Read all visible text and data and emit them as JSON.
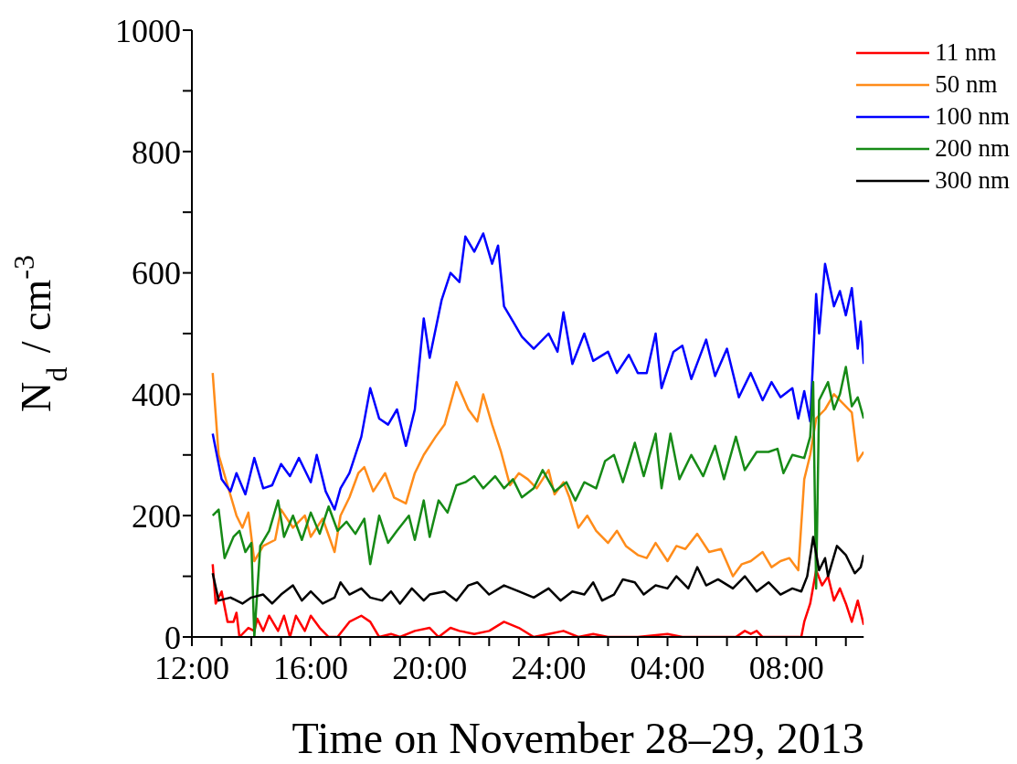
{
  "chart_data": {
    "type": "line",
    "xlabel": "Time on November 28–29, 2013",
    "ylabel": "N$_{d}$ / cm$^{-3}$",
    "xlim": [
      "2013-11-28T12:00",
      "2013-11-29T10:36"
    ],
    "ylim": [
      0,
      1000
    ],
    "xticks": [
      {
        "value": "2013-11-28T12:00",
        "label": "12:00"
      },
      {
        "value": "2013-11-28T13:00",
        "label": null
      },
      {
        "value": "2013-11-28T14:00",
        "label": null
      },
      {
        "value": "2013-11-28T15:00",
        "label": null
      },
      {
        "value": "2013-11-28T16:00",
        "label": "16:00"
      },
      {
        "value": "2013-11-28T17:00",
        "label": null
      },
      {
        "value": "2013-11-28T18:00",
        "label": null
      },
      {
        "value": "2013-11-28T19:00",
        "label": null
      },
      {
        "value": "2013-11-28T20:00",
        "label": "20:00"
      },
      {
        "value": "2013-11-28T21:00",
        "label": null
      },
      {
        "value": "2013-11-28T22:00",
        "label": null
      },
      {
        "value": "2013-11-28T23:00",
        "label": null
      },
      {
        "value": "2013-11-29T00:00",
        "label": "24:00"
      },
      {
        "value": "2013-11-29T01:00",
        "label": null
      },
      {
        "value": "2013-11-29T02:00",
        "label": null
      },
      {
        "value": "2013-11-29T03:00",
        "label": null
      },
      {
        "value": "2013-11-29T04:00",
        "label": "04:00"
      },
      {
        "value": "2013-11-29T05:00",
        "label": null
      },
      {
        "value": "2013-11-29T06:00",
        "label": null
      },
      {
        "value": "2013-11-29T07:00",
        "label": null
      },
      {
        "value": "2013-11-29T08:00",
        "label": "08:00"
      },
      {
        "value": "2013-11-29T09:00",
        "label": null
      },
      {
        "value": "2013-11-29T10:00",
        "label": null
      }
    ],
    "yticks": [
      0,
      {
        "value": 100,
        "label": null
      },
      200,
      {
        "value": 300,
        "label": null
      },
      400,
      {
        "value": 500,
        "label": null
      },
      600,
      {
        "value": 700,
        "label": null
      },
      800,
      {
        "value": 900,
        "label": null
      },
      1000
    ],
    "legend": "top right",
    "marker": "none",
    "line_style": "solid",
    "series": [
      {
        "name": "11 nm",
        "color": "#ff0000",
        "x": [
          "2013-11-28T12:42",
          "2013-11-28T12:48",
          "2013-11-28T13:00",
          "2013-11-28T13:12",
          "2013-11-28T13:24",
          "2013-11-28T13:30",
          "2013-11-28T13:36",
          "2013-11-28T13:54",
          "2013-11-28T14:06",
          "2013-11-28T14:12",
          "2013-11-28T14:24",
          "2013-11-28T14:36",
          "2013-11-28T14:54",
          "2013-11-28T15:06",
          "2013-11-28T15:18",
          "2013-11-28T15:30",
          "2013-11-28T15:48",
          "2013-11-28T16:00",
          "2013-11-28T16:18",
          "2013-11-28T16:36",
          "2013-11-28T16:54",
          "2013-11-28T17:18",
          "2013-11-28T17:42",
          "2013-11-28T18:00",
          "2013-11-28T18:18",
          "2013-11-28T18:42",
          "2013-11-28T19:00",
          "2013-11-28T19:30",
          "2013-11-28T20:00",
          "2013-11-28T20:18",
          "2013-11-28T20:42",
          "2013-11-28T21:00",
          "2013-11-28T21:30",
          "2013-11-28T22:00",
          "2013-11-28T22:30",
          "2013-11-28T23:00",
          "2013-11-28T23:30",
          "2013-11-29T00:00",
          "2013-11-29T00:30",
          "2013-11-29T01:00",
          "2013-11-29T01:30",
          "2013-11-29T02:00",
          "2013-11-29T03:00",
          "2013-11-29T04:00",
          "2013-11-29T04:30",
          "2013-11-29T05:30",
          "2013-11-29T06:18",
          "2013-11-29T06:36",
          "2013-11-29T06:48",
          "2013-11-29T07:00",
          "2013-11-29T07:12",
          "2013-11-29T08:30",
          "2013-11-29T08:36",
          "2013-11-29T08:48",
          "2013-11-29T09:00",
          "2013-11-29T09:12",
          "2013-11-29T09:24",
          "2013-11-29T09:36",
          "2013-11-29T09:48",
          "2013-11-29T10:00",
          "2013-11-29T10:12",
          "2013-11-29T10:24",
          "2013-11-29T10:36"
        ],
        "values": [
          120,
          55,
          75,
          25,
          25,
          40,
          0,
          15,
          10,
          30,
          10,
          35,
          10,
          35,
          0,
          35,
          10,
          35,
          15,
          0,
          0,
          25,
          35,
          25,
          0,
          5,
          0,
          10,
          15,
          0,
          15,
          10,
          5,
          10,
          25,
          15,
          0,
          5,
          10,
          0,
          5,
          0,
          0,
          5,
          0,
          0,
          0,
          10,
          5,
          10,
          0,
          0,
          25,
          55,
          110,
          85,
          100,
          60,
          80,
          55,
          25,
          60,
          20
        ]
      },
      {
        "name": "50 nm",
        "color": "#ff8c1a",
        "x": [
          "2013-11-28T12:42",
          "2013-11-28T12:54",
          "2013-11-28T13:12",
          "2013-11-28T13:30",
          "2013-11-28T13:42",
          "2013-11-28T13:54",
          "2013-11-28T14:06",
          "2013-11-28T14:24",
          "2013-11-28T14:48",
          "2013-11-28T15:00",
          "2013-11-28T15:24",
          "2013-11-28T15:48",
          "2013-11-28T16:00",
          "2013-11-28T16:24",
          "2013-11-28T16:48",
          "2013-11-28T17:00",
          "2013-11-28T17:18",
          "2013-11-28T17:36",
          "2013-11-28T17:48",
          "2013-11-28T18:06",
          "2013-11-28T18:30",
          "2013-11-28T18:48",
          "2013-11-28T19:12",
          "2013-11-28T19:30",
          "2013-11-28T19:48",
          "2013-11-28T20:12",
          "2013-11-28T20:30",
          "2013-11-28T20:54",
          "2013-11-28T21:18",
          "2013-11-28T21:36",
          "2013-11-28T21:48",
          "2013-11-28T22:06",
          "2013-11-28T22:24",
          "2013-11-28T22:42",
          "2013-11-28T23:00",
          "2013-11-28T23:18",
          "2013-11-28T23:36",
          "2013-11-29T00:00",
          "2013-11-29T00:12",
          "2013-11-29T00:30",
          "2013-11-29T00:42",
          "2013-11-29T01:00",
          "2013-11-29T01:18",
          "2013-11-29T01:36",
          "2013-11-29T02:00",
          "2013-11-29T02:18",
          "2013-11-29T02:36",
          "2013-11-29T03:00",
          "2013-11-29T03:18",
          "2013-11-29T03:36",
          "2013-11-29T04:00",
          "2013-11-29T04:18",
          "2013-11-29T04:36",
          "2013-11-29T05:00",
          "2013-11-29T05:24",
          "2013-11-29T05:48",
          "2013-11-29T06:12",
          "2013-11-29T06:30",
          "2013-11-29T06:48",
          "2013-11-29T07:12",
          "2013-11-29T07:30",
          "2013-11-29T07:48",
          "2013-11-29T08:06",
          "2013-11-29T08:24",
          "2013-11-29T08:36",
          "2013-11-29T08:48",
          "2013-11-29T09:00",
          "2013-11-29T09:18",
          "2013-11-29T09:36",
          "2013-11-29T09:54",
          "2013-11-29T10:12",
          "2013-11-29T10:24",
          "2013-11-29T10:36"
        ],
        "values": [
          435,
          300,
          250,
          200,
          180,
          205,
          125,
          150,
          160,
          210,
          180,
          200,
          165,
          195,
          140,
          200,
          230,
          270,
          280,
          240,
          270,
          230,
          220,
          270,
          300,
          330,
          350,
          420,
          375,
          355,
          400,
          350,
          305,
          250,
          270,
          260,
          245,
          275,
          235,
          255,
          230,
          180,
          200,
          175,
          155,
          175,
          150,
          135,
          130,
          155,
          125,
          150,
          145,
          170,
          140,
          145,
          100,
          120,
          125,
          140,
          115,
          125,
          130,
          110,
          260,
          300,
          360,
          375,
          400,
          385,
          370,
          290,
          305
        ]
      },
      {
        "name": "100 nm",
        "color": "#0000ff",
        "x": [
          "2013-11-28T12:42",
          "2013-11-28T13:00",
          "2013-11-28T13:18",
          "2013-11-28T13:30",
          "2013-11-28T13:48",
          "2013-11-28T14:06",
          "2013-11-28T14:24",
          "2013-11-28T14:42",
          "2013-11-28T15:00",
          "2013-11-28T15:18",
          "2013-11-28T15:36",
          "2013-11-28T16:00",
          "2013-11-28T16:12",
          "2013-11-28T16:30",
          "2013-11-28T16:48",
          "2013-11-28T17:00",
          "2013-11-28T17:18",
          "2013-11-28T17:42",
          "2013-11-28T18:00",
          "2013-11-28T18:18",
          "2013-11-28T18:36",
          "2013-11-28T18:54",
          "2013-11-28T19:12",
          "2013-11-28T19:30",
          "2013-11-28T19:48",
          "2013-11-28T20:00",
          "2013-11-28T20:24",
          "2013-11-28T20:42",
          "2013-11-28T21:00",
          "2013-11-28T21:12",
          "2013-11-28T21:30",
          "2013-11-28T21:48",
          "2013-11-28T22:06",
          "2013-11-28T22:18",
          "2013-11-28T22:30",
          "2013-11-28T22:48",
          "2013-11-28T23:06",
          "2013-11-28T23:30",
          "2013-11-29T00:00",
          "2013-11-29T00:18",
          "2013-11-29T00:30",
          "2013-11-29T00:48",
          "2013-11-29T01:12",
          "2013-11-29T01:30",
          "2013-11-29T02:00",
          "2013-11-29T02:18",
          "2013-11-29T02:42",
          "2013-11-29T03:00",
          "2013-11-29T03:18",
          "2013-11-29T03:36",
          "2013-11-29T03:48",
          "2013-11-29T04:12",
          "2013-11-29T04:30",
          "2013-11-29T04:48",
          "2013-11-29T05:18",
          "2013-11-29T05:36",
          "2013-11-29T06:00",
          "2013-11-29T06:24",
          "2013-11-29T06:48",
          "2013-11-29T07:12",
          "2013-11-29T07:30",
          "2013-11-29T07:48",
          "2013-11-29T08:12",
          "2013-11-29T08:24",
          "2013-11-29T08:36",
          "2013-11-29T08:48",
          "2013-11-29T09:00",
          "2013-11-29T09:06",
          "2013-11-29T09:18",
          "2013-11-29T09:36",
          "2013-11-29T09:48",
          "2013-11-29T10:00",
          "2013-11-29T10:12",
          "2013-11-29T10:24",
          "2013-11-29T10:30",
          "2013-11-29T10:36"
        ],
        "values": [
          335,
          260,
          240,
          270,
          235,
          295,
          245,
          250,
          285,
          265,
          295,
          255,
          300,
          240,
          210,
          245,
          270,
          330,
          410,
          360,
          350,
          375,
          315,
          375,
          525,
          460,
          555,
          600,
          585,
          660,
          635,
          665,
          615,
          645,
          545,
          520,
          495,
          475,
          500,
          470,
          535,
          450,
          500,
          455,
          470,
          435,
          465,
          435,
          435,
          500,
          410,
          470,
          480,
          425,
          490,
          430,
          475,
          395,
          435,
          390,
          420,
          395,
          410,
          360,
          405,
          355,
          565,
          500,
          615,
          545,
          570,
          530,
          575,
          475,
          520,
          450
        ]
      },
      {
        "name": "200 nm",
        "color": "#168a16",
        "x": [
          "2013-11-28T12:42",
          "2013-11-28T12:54",
          "2013-11-28T13:06",
          "2013-11-28T13:24",
          "2013-11-28T13:36",
          "2013-11-28T13:48",
          "2013-11-28T14:00",
          "2013-11-28T14:06",
          "2013-11-28T14:18",
          "2013-11-28T14:36",
          "2013-11-28T14:54",
          "2013-11-28T15:06",
          "2013-11-28T15:24",
          "2013-11-28T15:42",
          "2013-11-28T16:00",
          "2013-11-28T16:18",
          "2013-11-28T16:36",
          "2013-11-28T16:54",
          "2013-11-28T17:12",
          "2013-11-28T17:30",
          "2013-11-28T17:48",
          "2013-11-28T18:00",
          "2013-11-28T18:18",
          "2013-11-28T18:36",
          "2013-11-28T18:54",
          "2013-11-28T19:18",
          "2013-11-28T19:30",
          "2013-11-28T19:48",
          "2013-11-28T20:00",
          "2013-11-28T20:18",
          "2013-11-28T20:36",
          "2013-11-28T20:54",
          "2013-11-28T21:12",
          "2013-11-28T21:30",
          "2013-11-28T21:48",
          "2013-11-28T22:12",
          "2013-11-28T22:30",
          "2013-11-28T22:48",
          "2013-11-28T23:06",
          "2013-11-28T23:30",
          "2013-11-28T23:48",
          "2013-11-29T00:12",
          "2013-11-29T00:36",
          "2013-11-29T00:54",
          "2013-11-29T01:12",
          "2013-11-29T01:36",
          "2013-11-29T01:54",
          "2013-11-29T02:12",
          "2013-11-29T02:30",
          "2013-11-29T02:54",
          "2013-11-29T03:12",
          "2013-11-29T03:36",
          "2013-11-29T03:48",
          "2013-11-29T04:06",
          "2013-11-29T04:24",
          "2013-11-29T04:48",
          "2013-11-29T05:12",
          "2013-11-29T05:36",
          "2013-11-29T05:54",
          "2013-11-29T06:18",
          "2013-11-29T06:36",
          "2013-11-29T07:00",
          "2013-11-29T07:24",
          "2013-11-29T07:42",
          "2013-11-29T07:54",
          "2013-11-29T08:12",
          "2013-11-29T08:36",
          "2013-11-29T08:48",
          "2013-11-29T08:54",
          "2013-11-29T09:00",
          "2013-11-29T09:06",
          "2013-11-29T09:24",
          "2013-11-29T09:36",
          "2013-11-29T09:48",
          "2013-11-29T10:00",
          "2013-11-29T10:12",
          "2013-11-29T10:24",
          "2013-11-29T10:36"
        ],
        "values": [
          200,
          210,
          130,
          165,
          175,
          140,
          155,
          0,
          150,
          175,
          225,
          165,
          200,
          160,
          205,
          170,
          215,
          175,
          190,
          170,
          195,
          120,
          200,
          155,
          175,
          200,
          160,
          225,
          165,
          225,
          205,
          250,
          255,
          265,
          245,
          265,
          245,
          260,
          230,
          245,
          275,
          240,
          255,
          225,
          255,
          245,
          290,
          300,
          255,
          320,
          265,
          335,
          245,
          335,
          260,
          300,
          265,
          315,
          260,
          330,
          275,
          305,
          305,
          310,
          270,
          300,
          295,
          330,
          420,
          80,
          390,
          420,
          375,
          400,
          445,
          380,
          395,
          360
        ]
      },
      {
        "name": "300 nm",
        "color": "#000000",
        "x": [
          "2013-11-28T12:42",
          "2013-11-28T12:54",
          "2013-11-28T13:18",
          "2013-11-28T13:42",
          "2013-11-28T14:00",
          "2013-11-28T14:24",
          "2013-11-28T14:42",
          "2013-11-28T15:00",
          "2013-11-28T15:24",
          "2013-11-28T15:42",
          "2013-11-28T16:00",
          "2013-11-28T16:24",
          "2013-11-28T16:48",
          "2013-11-28T17:00",
          "2013-11-28T17:18",
          "2013-11-28T17:42",
          "2013-11-28T18:00",
          "2013-11-28T18:24",
          "2013-11-28T18:42",
          "2013-11-28T19:00",
          "2013-11-28T19:24",
          "2013-11-28T19:48",
          "2013-11-28T20:00",
          "2013-11-28T20:30",
          "2013-11-28T20:54",
          "2013-11-28T21:18",
          "2013-11-28T21:36",
          "2013-11-28T22:00",
          "2013-11-28T22:30",
          "2013-11-28T23:00",
          "2013-11-28T23:30",
          "2013-11-29T00:00",
          "2013-11-29T00:24",
          "2013-11-29T00:48",
          "2013-11-29T01:12",
          "2013-11-29T01:30",
          "2013-11-29T01:48",
          "2013-11-29T02:12",
          "2013-11-29T02:30",
          "2013-11-29T02:54",
          "2013-11-29T03:12",
          "2013-11-29T03:36",
          "2013-11-29T04:00",
          "2013-11-29T04:18",
          "2013-11-29T04:42",
          "2013-11-29T05:00",
          "2013-11-29T05:18",
          "2013-11-29T05:42",
          "2013-11-29T06:12",
          "2013-11-29T06:36",
          "2013-11-29T07:00",
          "2013-11-29T07:24",
          "2013-11-29T07:48",
          "2013-11-29T08:12",
          "2013-11-29T08:30",
          "2013-11-29T08:42",
          "2013-11-29T08:54",
          "2013-11-29T09:06",
          "2013-11-29T09:18",
          "2013-11-29T09:24",
          "2013-11-29T09:42",
          "2013-11-29T10:00",
          "2013-11-29T10:18",
          "2013-11-29T10:30",
          "2013-11-29T10:36"
        ],
        "values": [
          105,
          60,
          65,
          55,
          65,
          70,
          55,
          70,
          85,
          60,
          75,
          55,
          65,
          90,
          70,
          80,
          65,
          60,
          75,
          55,
          80,
          60,
          70,
          75,
          60,
          85,
          90,
          70,
          85,
          75,
          65,
          80,
          60,
          75,
          70,
          90,
          60,
          70,
          95,
          90,
          70,
          85,
          80,
          100,
          80,
          115,
          85,
          95,
          80,
          100,
          75,
          90,
          70,
          80,
          75,
          100,
          165,
          110,
          130,
          100,
          150,
          135,
          105,
          115,
          135
        ]
      }
    ]
  }
}
